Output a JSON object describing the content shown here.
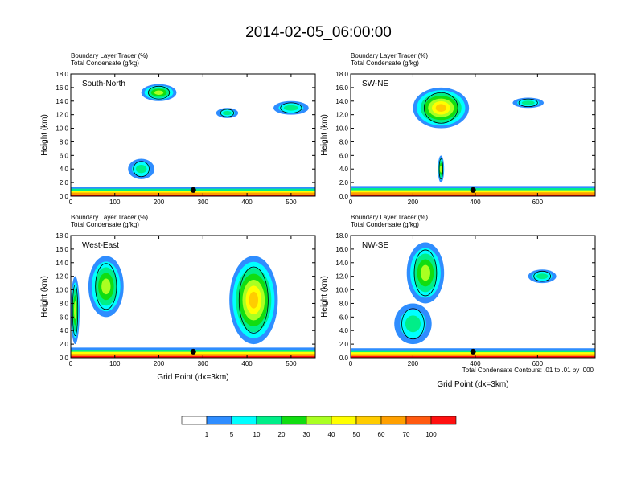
{
  "title": "2014-02-05_06:00:00",
  "colorbar": {
    "colors": [
      "#ffffff",
      "#2f8dff",
      "#00ffff",
      "#00ee88",
      "#11dd11",
      "#aaff22",
      "#ffff00",
      "#ffcc00",
      "#ffa000",
      "#ff5a10",
      "#ff1010"
    ],
    "labels": [
      "1",
      "5",
      "10",
      "20",
      "30",
      "40",
      "50",
      "60",
      "70",
      "100"
    ]
  },
  "footnote": "Total Condensate Contours: .01 to .01 by .000",
  "chart_data": [
    {
      "type": "heatmap",
      "panel_label": "South-North",
      "legend_lines": [
        "Boundary Layer Tracer    (%)",
        "Total Condensate   (g/kg)"
      ],
      "ylabel": "Height (km)",
      "xlabel": "",
      "ylim": [
        0,
        18
      ],
      "yticks": [
        "0.0",
        "2.0",
        "4.0",
        "6.0",
        "8.0",
        "10.0",
        "12.0",
        "14.0",
        "16.0",
        "18.0"
      ],
      "xlim": [
        0,
        555
      ],
      "xticks": [
        0,
        100,
        200,
        300,
        400,
        500
      ],
      "marker_x": 278,
      "features": [
        {
          "x": [
            0,
            555
          ],
          "y": [
            0,
            1.3
          ],
          "level": "surface"
        },
        {
          "x": [
            160,
            240
          ],
          "y": [
            14,
            16.5
          ],
          "level": "cloud_mid"
        },
        {
          "x": [
            130,
            190
          ],
          "y": [
            2.5,
            5.5
          ],
          "level": "cloud_low"
        },
        {
          "x": [
            460,
            540
          ],
          "y": [
            12.0,
            14.0
          ],
          "level": "cloud_low"
        },
        {
          "x": [
            330,
            380
          ],
          "y": [
            11.5,
            13.0
          ],
          "level": "cloud_low"
        }
      ]
    },
    {
      "type": "heatmap",
      "panel_label": "SW-NE",
      "legend_lines": [
        "Boundary Layer Tracer    (%)",
        "Total Condensate   (g/kg)"
      ],
      "ylabel": "Height (km)",
      "xlabel": "",
      "ylim": [
        0,
        18
      ],
      "yticks": [
        "0.0",
        "2.0",
        "4.0",
        "6.0",
        "8.0",
        "10.0",
        "12.0",
        "14.0",
        "16.0",
        "18.0"
      ],
      "xlim": [
        0,
        785
      ],
      "xticks": [
        0,
        200,
        400,
        600
      ],
      "marker_x": 393,
      "features": [
        {
          "x": [
            0,
            785
          ],
          "y": [
            0,
            1.4
          ],
          "level": "surface"
        },
        {
          "x": [
            200,
            380
          ],
          "y": [
            10,
            16
          ],
          "level": "cloud_high"
        },
        {
          "x": [
            520,
            620
          ],
          "y": [
            13,
            14.5
          ],
          "level": "cloud_low"
        },
        {
          "x": [
            280,
            300
          ],
          "y": [
            2,
            6
          ],
          "level": "cloud_mid"
        }
      ]
    },
    {
      "type": "heatmap",
      "panel_label": "West-East",
      "legend_lines": [
        "Boundary Layer Tracer    (%)",
        "Total Condensate   (g/kg)"
      ],
      "ylabel": "Height (km)",
      "xlabel": "Grid Point (dx=3km)",
      "ylim": [
        0,
        18
      ],
      "yticks": [
        "0.0",
        "2.0",
        "4.0",
        "6.0",
        "8.0",
        "10.0",
        "12.0",
        "14.0",
        "16.0",
        "18.0"
      ],
      "xlim": [
        0,
        555
      ],
      "xticks": [
        0,
        100,
        200,
        300,
        400,
        500
      ],
      "marker_x": 278,
      "features": [
        {
          "x": [
            0,
            555
          ],
          "y": [
            0,
            1.4
          ],
          "level": "surface"
        },
        {
          "x": [
            360,
            470
          ],
          "y": [
            2,
            15
          ],
          "level": "cloud_high"
        },
        {
          "x": [
            40,
            120
          ],
          "y": [
            6,
            15
          ],
          "level": "cloud_mid"
        },
        {
          "x": [
            0,
            20
          ],
          "y": [
            2,
            12
          ],
          "level": "cloud_mid"
        }
      ]
    },
    {
      "type": "heatmap",
      "panel_label": "NW-SE",
      "legend_lines": [
        "Boundary Layer Tracer    (%)",
        "Total Condensate   (g/kg)"
      ],
      "ylabel": "Height (km)",
      "xlabel": "Grid Point (dx=3km)",
      "ylim": [
        0,
        18
      ],
      "yticks": [
        "0.0",
        "2.0",
        "4.0",
        "6.0",
        "8.0",
        "10.0",
        "12.0",
        "14.0",
        "16.0",
        "18.0"
      ],
      "xlim": [
        0,
        785
      ],
      "xticks": [
        0,
        200,
        400,
        600
      ],
      "marker_x": 393,
      "features": [
        {
          "x": [
            0,
            785
          ],
          "y": [
            0,
            1.3
          ],
          "level": "surface"
        },
        {
          "x": [
            180,
            300
          ],
          "y": [
            8,
            17
          ],
          "level": "cloud_mid"
        },
        {
          "x": [
            140,
            260
          ],
          "y": [
            2,
            8
          ],
          "level": "cloud_low"
        },
        {
          "x": [
            570,
            660
          ],
          "y": [
            11,
            13
          ],
          "level": "cloud_low"
        }
      ]
    }
  ]
}
